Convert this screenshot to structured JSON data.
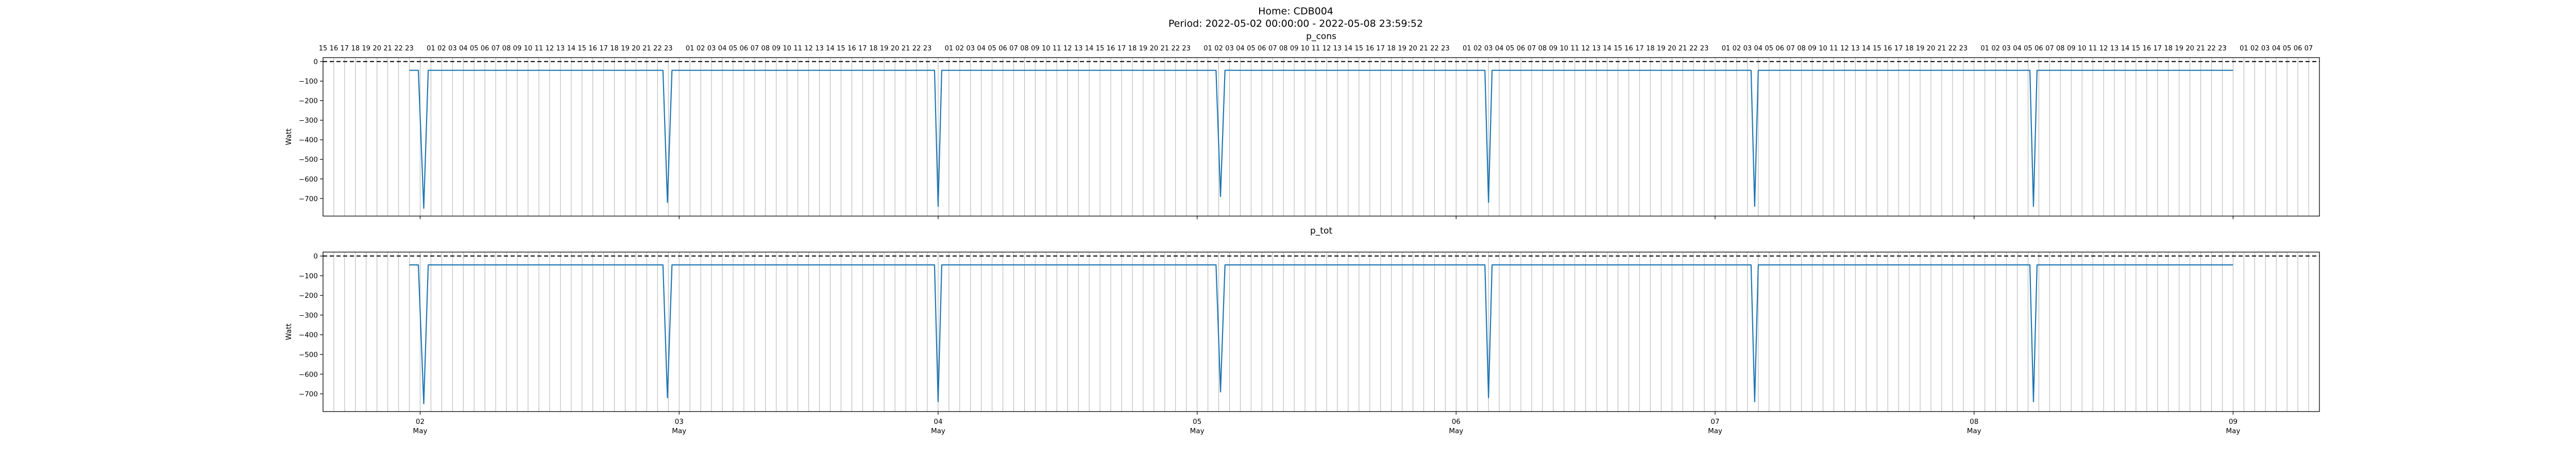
{
  "figure": {
    "title_line1": "Home: CDB004",
    "title_line2": "Period: 2022-05-02 00:00:00 - 2022-05-08 23:59:52"
  },
  "chart_data": [
    {
      "type": "line",
      "title": "p_cons",
      "xlabel": "",
      "ylabel": "Watt",
      "x_range": [
        "2022-05-01 15:00",
        "2022-05-09 08:00"
      ],
      "ylim": [
        -790,
        20
      ],
      "yticks": [
        0,
        -100,
        -200,
        -300,
        -400,
        -500,
        -600,
        -700
      ],
      "xticks": [
        {
          "value": "2022-05-02",
          "day": "02",
          "month": "May"
        },
        {
          "value": "2022-05-03",
          "day": "03",
          "month": "May"
        },
        {
          "value": "2022-05-04",
          "day": "04",
          "month": "May"
        },
        {
          "value": "2022-05-05",
          "day": "05",
          "month": "May"
        },
        {
          "value": "2022-05-06",
          "day": "06",
          "month": "May"
        },
        {
          "value": "2022-05-07",
          "day": "07",
          "month": "May"
        },
        {
          "value": "2022-05-08",
          "day": "08",
          "month": "May"
        },
        {
          "value": "2022-05-09",
          "day": "09",
          "month": "May"
        }
      ],
      "reference_line": {
        "y": 0,
        "style": "dashed",
        "color": "#000000"
      },
      "hour_gridlines": true,
      "series": [
        {
          "color": "#1f77b4",
          "points": [
            [
              "2022-05-01 23:00",
              -45
            ],
            [
              "2022-05-01 23:50",
              -45
            ],
            [
              "2022-05-02 00:20",
              -750
            ],
            [
              "2022-05-02 00:45",
              -45
            ],
            [
              "2022-05-02 22:30",
              -45
            ],
            [
              "2022-05-02 22:55",
              -720
            ],
            [
              "2022-05-02 23:20",
              -45
            ],
            [
              "2022-05-03 23:40",
              -45
            ],
            [
              "2022-05-04 00:00",
              -740
            ],
            [
              "2022-05-04 00:20",
              -45
            ],
            [
              "2022-05-05 01:45",
              -45
            ],
            [
              "2022-05-05 02:10",
              -690
            ],
            [
              "2022-05-05 02:35",
              -45
            ],
            [
              "2022-05-06 02:40",
              -45
            ],
            [
              "2022-05-06 03:00",
              -720
            ],
            [
              "2022-05-06 03:20",
              -45
            ],
            [
              "2022-05-07 03:20",
              -45
            ],
            [
              "2022-05-07 03:40",
              -740
            ],
            [
              "2022-05-07 04:00",
              -45
            ],
            [
              "2022-05-08 05:10",
              -45
            ],
            [
              "2022-05-08 05:30",
              -740
            ],
            [
              "2022-05-08 05:50",
              -45
            ],
            [
              "2022-05-08 23:59",
              -45
            ]
          ]
        }
      ]
    },
    {
      "type": "line",
      "title": "p_tot",
      "xlabel": "",
      "ylabel": "Watt",
      "x_range": [
        "2022-05-01 15:00",
        "2022-05-09 08:00"
      ],
      "ylim": [
        -790,
        20
      ],
      "yticks": [
        0,
        -100,
        -200,
        -300,
        -400,
        -500,
        -600,
        -700
      ],
      "xticks": [
        {
          "value": "2022-05-02",
          "day": "02",
          "month": "May"
        },
        {
          "value": "2022-05-03",
          "day": "03",
          "month": "May"
        },
        {
          "value": "2022-05-04",
          "day": "04",
          "month": "May"
        },
        {
          "value": "2022-05-05",
          "day": "05",
          "month": "May"
        },
        {
          "value": "2022-05-06",
          "day": "06",
          "month": "May"
        },
        {
          "value": "2022-05-07",
          "day": "07",
          "month": "May"
        },
        {
          "value": "2022-05-08",
          "day": "08",
          "month": "May"
        },
        {
          "value": "2022-05-09",
          "day": "09",
          "month": "May"
        }
      ],
      "reference_line": {
        "y": 0,
        "style": "dashed",
        "color": "#000000"
      },
      "hour_gridlines": true,
      "series": [
        {
          "color": "#1f77b4",
          "points": [
            [
              "2022-05-01 23:00",
              -45
            ],
            [
              "2022-05-01 23:50",
              -45
            ],
            [
              "2022-05-02 00:20",
              -750
            ],
            [
              "2022-05-02 00:45",
              -45
            ],
            [
              "2022-05-02 22:30",
              -45
            ],
            [
              "2022-05-02 22:55",
              -720
            ],
            [
              "2022-05-02 23:20",
              -45
            ],
            [
              "2022-05-03 23:40",
              -45
            ],
            [
              "2022-05-04 00:00",
              -740
            ],
            [
              "2022-05-04 00:20",
              -45
            ],
            [
              "2022-05-05 01:45",
              -45
            ],
            [
              "2022-05-05 02:10",
              -690
            ],
            [
              "2022-05-05 02:35",
              -45
            ],
            [
              "2022-05-06 02:40",
              -45
            ],
            [
              "2022-05-06 03:00",
              -720
            ],
            [
              "2022-05-06 03:20",
              -45
            ],
            [
              "2022-05-07 03:20",
              -45
            ],
            [
              "2022-05-07 03:40",
              -740
            ],
            [
              "2022-05-07 04:00",
              -45
            ],
            [
              "2022-05-08 05:10",
              -45
            ],
            [
              "2022-05-08 05:30",
              -740
            ],
            [
              "2022-05-08 05:50",
              -45
            ],
            [
              "2022-05-08 23:59",
              -45
            ]
          ]
        }
      ]
    }
  ]
}
